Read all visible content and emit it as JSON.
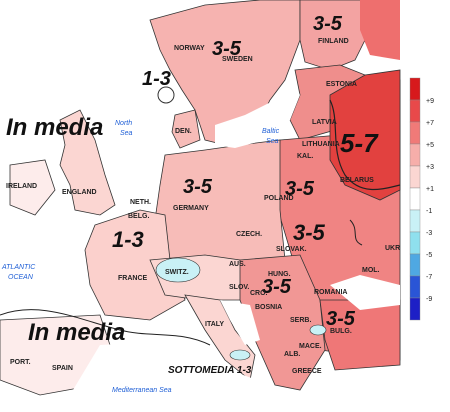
{
  "legend": {
    "ticks": [
      "+9",
      "+7",
      "+5",
      "+3",
      "+1",
      "-1",
      "-3",
      "-5",
      "-7",
      "-9"
    ],
    "colors": [
      "#d7191c",
      "#e8494a",
      "#f07a78",
      "#f6aeaa",
      "#fbd6d2",
      "#ffffff",
      "#c9f1f6",
      "#8fe0ee",
      "#4fa8e2",
      "#2a55d6",
      "#1d1fc6"
    ]
  },
  "map": {
    "sea_color": "#ffffff",
    "land_base_color": "#f8ccc8",
    "north_color": "#f3a3a2",
    "east_color": "#ee7d7c",
    "hot_color": "#e2413f"
  },
  "big_labels": [
    "3-5",
    "3-5",
    "1-3",
    "In media",
    "5-7",
    "3-5",
    "3-5",
    "1-3",
    "3-5",
    "3-5",
    "3-5",
    "In media"
  ],
  "countries": [
    "NORWAY",
    "SWEDEN",
    "FINLAND",
    "ESTONIA",
    "LATVIA",
    "LITHUANIA",
    "KAL.",
    "BELARUS",
    "DEN.",
    "ENGLAND",
    "IRELAND",
    "NETH.",
    "BELG.",
    "GERMANY",
    "POLAND",
    "CZECH.",
    "SLOVAK.",
    "UKR",
    "FRANCE",
    "SWITZ.",
    "AUS.",
    "HUNG.",
    "SLOV.",
    "CRO.",
    "BOSNIA",
    "SERB.",
    "ROMANIA",
    "MOL.",
    "BULG.",
    "MACE.",
    "ALB.",
    "GREECE",
    "ITALY",
    "PORT.",
    "SPAIN"
  ],
  "seas": [
    "North",
    "Sea",
    "Baltic",
    "Sea",
    "ATLANTIC",
    "OCEAN",
    "Mediterranean Sea"
  ],
  "small_label": "SOTTOMEDIA 1-3"
}
